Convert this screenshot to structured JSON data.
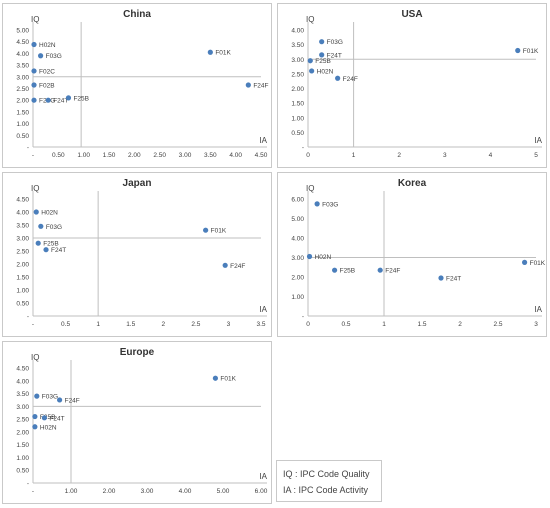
{
  "chart_data": [
    {
      "type": "scatter",
      "title": "China",
      "xlabel": "IA",
      "ylabel": "IQ",
      "xlim": [
        0,
        4.5
      ],
      "ylim": [
        0,
        5.0
      ],
      "x_ticks": [
        "-",
        "0.50",
        "1.00",
        "1.50",
        "2.00",
        "2.50",
        "3.00",
        "3.50",
        "4.00",
        "4.50"
      ],
      "y_ticks": [
        "-",
        "0.50",
        "1.00",
        "1.50",
        "2.00",
        "2.50",
        "3.00",
        "3.50",
        "4.00",
        "4.50",
        "5.00"
      ],
      "reference_lines": {
        "x": 0.95,
        "y": 3.0
      },
      "points": [
        {
          "label": "F01K",
          "x": 3.5,
          "y": 4.05
        },
        {
          "label": "H02N",
          "x": 0.02,
          "y": 4.38
        },
        {
          "label": "F03G",
          "x": 0.15,
          "y": 3.9
        },
        {
          "label": "F02C",
          "x": 0.02,
          "y": 3.25
        },
        {
          "label": "F02B",
          "x": 0.02,
          "y": 2.65
        },
        {
          "label": "F24F",
          "x": 4.25,
          "y": 2.65
        },
        {
          "label": "F23G",
          "x": 0.02,
          "y": 2.0
        },
        {
          "label": "F24T",
          "x": 0.3,
          "y": 2.0
        },
        {
          "label": "F25B",
          "x": 0.7,
          "y": 2.1
        }
      ]
    },
    {
      "type": "scatter",
      "title": "USA",
      "xlabel": "IA",
      "ylabel": "IQ",
      "xlim": [
        0,
        5
      ],
      "ylim": [
        0,
        4.0
      ],
      "x_ticks": [
        "0",
        "1",
        "2",
        "3",
        "4",
        "5"
      ],
      "y_ticks": [
        "-",
        "0.50",
        "1.00",
        "1.50",
        "2.00",
        "2.50",
        "3.00",
        "3.50",
        "4.00"
      ],
      "reference_lines": {
        "x": 1.0,
        "y": 3.0
      },
      "points": [
        {
          "label": "F01K",
          "x": 4.6,
          "y": 3.3
        },
        {
          "label": "F03G",
          "x": 0.3,
          "y": 3.6
        },
        {
          "label": "F24T",
          "x": 0.3,
          "y": 3.15
        },
        {
          "label": "F25B",
          "x": 0.05,
          "y": 2.95
        },
        {
          "label": "H02N",
          "x": 0.08,
          "y": 2.6
        },
        {
          "label": "F24F",
          "x": 0.65,
          "y": 2.35
        }
      ]
    },
    {
      "type": "scatter",
      "title": "Japan",
      "xlabel": "IA",
      "ylabel": "IQ",
      "xlim": [
        0,
        3.5
      ],
      "ylim": [
        0,
        4.5
      ],
      "x_ticks": [
        "-",
        "0.5",
        "1",
        "1.5",
        "2",
        "2.5",
        "3",
        "3.5"
      ],
      "y_ticks": [
        "-",
        "0.50",
        "1.00",
        "1.50",
        "2.00",
        "2.50",
        "3.00",
        "3.50",
        "4.00",
        "4.50"
      ],
      "reference_lines": {
        "x": 1.0,
        "y": 3.0
      },
      "points": [
        {
          "label": "H02N",
          "x": 0.05,
          "y": 4.0
        },
        {
          "label": "F03G",
          "x": 0.12,
          "y": 3.45
        },
        {
          "label": "F01K",
          "x": 2.65,
          "y": 3.3
        },
        {
          "label": "F25B",
          "x": 0.08,
          "y": 2.8
        },
        {
          "label": "F24T",
          "x": 0.2,
          "y": 2.55
        },
        {
          "label": "F24F",
          "x": 2.95,
          "y": 1.95
        }
      ]
    },
    {
      "type": "scatter",
      "title": "Korea",
      "xlabel": "IA",
      "ylabel": "IQ",
      "xlim": [
        0,
        3
      ],
      "ylim": [
        0,
        6.0
      ],
      "x_ticks": [
        "0",
        "0.5",
        "1",
        "1.5",
        "2",
        "2.5",
        "3"
      ],
      "y_ticks": [
        "-",
        "1.00",
        "2.00",
        "3.00",
        "4.00",
        "5.00",
        "6.00"
      ],
      "reference_lines": {
        "x": 1.0,
        "y": 3.0
      },
      "points": [
        {
          "label": "F03G",
          "x": 0.12,
          "y": 5.75
        },
        {
          "label": "H02N",
          "x": 0.02,
          "y": 3.05
        },
        {
          "label": "F25B",
          "x": 0.35,
          "y": 2.35
        },
        {
          "label": "F24F",
          "x": 0.95,
          "y": 2.35
        },
        {
          "label": "F24T",
          "x": 1.75,
          "y": 1.95
        },
        {
          "label": "F01K",
          "x": 2.85,
          "y": 2.75
        }
      ]
    },
    {
      "type": "scatter",
      "title": "Europe",
      "xlabel": "IA",
      "ylabel": "IQ",
      "xlim": [
        0,
        6.0
      ],
      "ylim": [
        0,
        4.5
      ],
      "x_ticks": [
        "-",
        "1.00",
        "2.00",
        "3.00",
        "4.00",
        "5.00",
        "6.00"
      ],
      "y_ticks": [
        "-",
        "0.50",
        "1.00",
        "1.50",
        "2.00",
        "2.50",
        "3.00",
        "3.50",
        "4.00",
        "4.50"
      ],
      "reference_lines": {
        "x": 1.0,
        "y": 3.0
      },
      "points": [
        {
          "label": "F01K",
          "x": 4.8,
          "y": 4.1
        },
        {
          "label": "F03G",
          "x": 0.1,
          "y": 3.4
        },
        {
          "label": "F24F",
          "x": 0.7,
          "y": 3.25
        },
        {
          "label": "F25B",
          "x": 0.05,
          "y": 2.6
        },
        {
          "label": "F24T",
          "x": 0.3,
          "y": 2.55
        },
        {
          "label": "H02N",
          "x": 0.05,
          "y": 2.2
        }
      ]
    }
  ],
  "legend_note": {
    "iq": "IQ : IPC Code Quality",
    "ia": "IA : IPC Code Activity"
  },
  "colors": {
    "marker": "#4a7ebb",
    "grid": "#bfbfbf",
    "text": "#404040"
  }
}
